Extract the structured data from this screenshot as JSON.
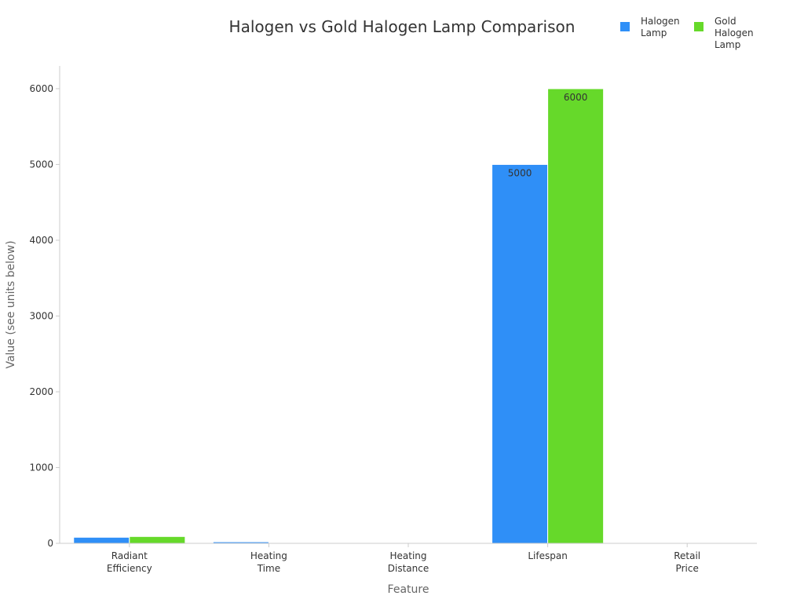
{
  "chart_data": {
    "type": "bar",
    "title": "Halogen vs Gold Halogen Lamp Comparison",
    "xlabel": "Feature",
    "ylabel": "Value (see units below)",
    "categories": [
      [
        "Radiant",
        "Efficiency"
      ],
      [
        "Heating",
        "Time"
      ],
      [
        "Heating",
        "Distance"
      ],
      [
        "Lifespan"
      ],
      [
        "Retail",
        "Price"
      ]
    ],
    "series": [
      {
        "name": [
          "Halogen",
          "Lamp"
        ],
        "color": "#2f8ff7",
        "values": [
          80,
          20,
          3,
          5000,
          10
        ],
        "labels": [
          "",
          "",
          "",
          "5000",
          ""
        ]
      },
      {
        "name": [
          "Gold",
          "Halogen",
          "Lamp"
        ],
        "color": "#66d92a",
        "values": [
          90,
          0,
          3,
          6000,
          10
        ],
        "labels": [
          "",
          "",
          "",
          "6000",
          ""
        ]
      }
    ],
    "ylim": [
      0,
      6300
    ],
    "yticks": [
      0,
      1000,
      2000,
      3000,
      4000,
      5000,
      6000
    ],
    "grid": false,
    "legend_position": "top-right"
  }
}
